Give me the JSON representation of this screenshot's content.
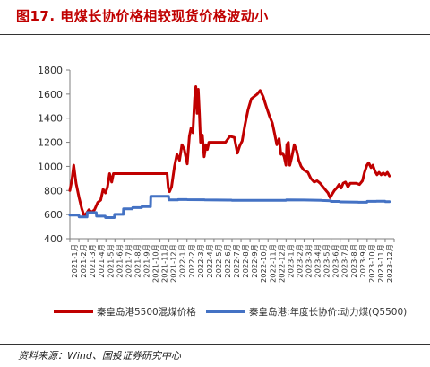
{
  "figure_title": "图17. 电煤长协价格相较现货价格波动小",
  "source": "资料来源：Wind、国投证券研究中心",
  "colors": {
    "spot": "#c00000",
    "contract": "#4472c4",
    "axis": "#7f7f7f",
    "title": "#c00000"
  },
  "chart_data": {
    "type": "line",
    "ylim": [
      400,
      1800
    ],
    "yticks": [
      400,
      600,
      800,
      1000,
      1200,
      1400,
      1600,
      1800
    ],
    "xlim": [
      "2021-01",
      "2023-12"
    ],
    "xticks": [
      "2021-1月",
      "2021-2月",
      "2021-3月",
      "2021-4月",
      "2021-5月",
      "2021-6月",
      "2021-7月",
      "2021-8月",
      "2021-9月",
      "2021-10月",
      "2021-11月",
      "2021-12月",
      "2022-1月",
      "2022-2月",
      "2022-3月",
      "2022-4月",
      "2022-5月",
      "2022-6月",
      "2022-7月",
      "2022-8月",
      "2022-9月",
      "2022-10月",
      "2022-11月",
      "2022-12月",
      "2023-1月",
      "2023-2月",
      "2023-3月",
      "2023-4月",
      "2023-5月",
      "2023-6月",
      "2023-7月",
      "2023-8月",
      "2023-9月",
      "2023-10月",
      "2023-11月",
      "2023-12月"
    ],
    "legend_position": "bottom",
    "grid": false,
    "series": [
      {
        "name": "秦皇岛港5500混煤价格",
        "color": "#c00000",
        "points": [
          [
            "2021-01-01",
            800
          ],
          [
            "2021-01-08",
            890
          ],
          [
            "2021-01-14",
            1010
          ],
          [
            "2021-01-22",
            860
          ],
          [
            "2021-02-01",
            740
          ],
          [
            "2021-02-10",
            650
          ],
          [
            "2021-02-18",
            590
          ],
          [
            "2021-02-26",
            610
          ],
          [
            "2021-03-06",
            640
          ],
          [
            "2021-03-15",
            620
          ],
          [
            "2021-03-25",
            640
          ],
          [
            "2021-04-05",
            700
          ],
          [
            "2021-04-15",
            720
          ],
          [
            "2021-04-23",
            810
          ],
          [
            "2021-05-01",
            780
          ],
          [
            "2021-05-08",
            830
          ],
          [
            "2021-05-15",
            940
          ],
          [
            "2021-05-22",
            870
          ],
          [
            "2021-05-28",
            940
          ],
          [
            "2021-06-15",
            940
          ],
          [
            "2021-07-15",
            940
          ],
          [
            "2021-08-15",
            940
          ],
          [
            "2021-09-15",
            940
          ],
          [
            "2021-10-15",
            940
          ],
          [
            "2021-11-15",
            940
          ],
          [
            "2021-11-25",
            940
          ],
          [
            "2021-11-29",
            820
          ],
          [
            "2021-12-03",
            790
          ],
          [
            "2021-12-10",
            830
          ],
          [
            "2021-12-20",
            1000
          ],
          [
            "2021-12-28",
            1100
          ],
          [
            "2022-01-06",
            1050
          ],
          [
            "2022-01-14",
            1180
          ],
          [
            "2022-01-22",
            1140
          ],
          [
            "2022-02-01",
            1020
          ],
          [
            "2022-02-08",
            1250
          ],
          [
            "2022-02-14",
            1320
          ],
          [
            "2022-02-20",
            1280
          ],
          [
            "2022-02-26",
            1570
          ],
          [
            "2022-03-02",
            1662
          ],
          [
            "2022-03-06",
            1440
          ],
          [
            "2022-03-10",
            1640
          ],
          [
            "2022-03-14",
            1440
          ],
          [
            "2022-03-18",
            1200
          ],
          [
            "2022-03-24",
            1260
          ],
          [
            "2022-03-30",
            1080
          ],
          [
            "2022-04-05",
            1180
          ],
          [
            "2022-04-10",
            1140
          ],
          [
            "2022-04-15",
            1200
          ],
          [
            "2022-05-05",
            1200
          ],
          [
            "2022-05-25",
            1200
          ],
          [
            "2022-06-10",
            1200
          ],
          [
            "2022-06-25",
            1250
          ],
          [
            "2022-07-10",
            1240
          ],
          [
            "2022-07-20",
            1110
          ],
          [
            "2022-07-28",
            1170
          ],
          [
            "2022-08-05",
            1210
          ],
          [
            "2022-08-15",
            1350
          ],
          [
            "2022-08-25",
            1470
          ],
          [
            "2022-09-05",
            1560
          ],
          [
            "2022-09-15",
            1580
          ],
          [
            "2022-09-25",
            1600
          ],
          [
            "2022-10-05",
            1630
          ],
          [
            "2022-10-15",
            1580
          ],
          [
            "2022-10-25",
            1500
          ],
          [
            "2022-11-05",
            1420
          ],
          [
            "2022-11-15",
            1360
          ],
          [
            "2022-11-22",
            1280
          ],
          [
            "2022-11-30",
            1180
          ],
          [
            "2022-12-08",
            1230
          ],
          [
            "2022-12-14",
            1100
          ],
          [
            "2022-12-20",
            1110
          ],
          [
            "2022-12-25",
            1080
          ],
          [
            "2022-12-31",
            1010
          ],
          [
            "2023-01-03",
            1180
          ],
          [
            "2023-01-08",
            1200
          ],
          [
            "2023-01-13",
            1010
          ],
          [
            "2023-01-20",
            1080
          ],
          [
            "2023-01-28",
            1180
          ],
          [
            "2023-02-05",
            1130
          ],
          [
            "2023-02-12",
            1050
          ],
          [
            "2023-02-20",
            1000
          ],
          [
            "2023-03-01",
            970
          ],
          [
            "2023-03-15",
            950
          ],
          [
            "2023-03-25",
            900
          ],
          [
            "2023-04-05",
            870
          ],
          [
            "2023-04-15",
            880
          ],
          [
            "2023-04-25",
            860
          ],
          [
            "2023-05-05",
            830
          ],
          [
            "2023-05-15",
            800
          ],
          [
            "2023-05-22",
            780
          ],
          [
            "2023-05-29",
            740
          ],
          [
            "2023-06-05",
            770
          ],
          [
            "2023-06-12",
            800
          ],
          [
            "2023-06-20",
            820
          ],
          [
            "2023-06-28",
            850
          ],
          [
            "2023-07-05",
            820
          ],
          [
            "2023-07-12",
            860
          ],
          [
            "2023-07-20",
            870
          ],
          [
            "2023-07-28",
            830
          ],
          [
            "2023-08-05",
            860
          ],
          [
            "2023-08-15",
            860
          ],
          [
            "2023-08-25",
            860
          ],
          [
            "2023-09-05",
            850
          ],
          [
            "2023-09-15",
            880
          ],
          [
            "2023-09-22",
            950
          ],
          [
            "2023-09-30",
            1010
          ],
          [
            "2023-10-06",
            1030
          ],
          [
            "2023-10-14",
            990
          ],
          [
            "2023-10-20",
            1010
          ],
          [
            "2023-10-27",
            960
          ],
          [
            "2023-11-03",
            930
          ],
          [
            "2023-11-10",
            950
          ],
          [
            "2023-11-17",
            930
          ],
          [
            "2023-11-24",
            945
          ],
          [
            "2023-12-01",
            930
          ],
          [
            "2023-12-08",
            950
          ],
          [
            "2023-12-15",
            920
          ]
        ]
      },
      {
        "name": "秦皇岛港:年度长协价:动力煤(Q5500)",
        "color": "#4472c4",
        "points": [
          [
            "2021-01-01",
            595
          ],
          [
            "2021-01-31",
            595
          ],
          [
            "2021-02-01",
            580
          ],
          [
            "2021-02-28",
            580
          ],
          [
            "2021-03-01",
            617
          ],
          [
            "2021-03-31",
            617
          ],
          [
            "2021-04-01",
            587
          ],
          [
            "2021-04-30",
            587
          ],
          [
            "2021-05-01",
            575
          ],
          [
            "2021-05-31",
            575
          ],
          [
            "2021-06-01",
            602
          ],
          [
            "2021-06-30",
            602
          ],
          [
            "2021-07-01",
            648
          ],
          [
            "2021-07-31",
            648
          ],
          [
            "2021-08-01",
            658
          ],
          [
            "2021-08-31",
            658
          ],
          [
            "2021-09-01",
            666
          ],
          [
            "2021-09-30",
            666
          ],
          [
            "2021-10-01",
            752
          ],
          [
            "2021-10-31",
            752
          ],
          [
            "2021-11-01",
            752
          ],
          [
            "2021-11-30",
            752
          ],
          [
            "2021-12-01",
            722
          ],
          [
            "2021-12-31",
            722
          ],
          [
            "2022-01-01",
            725
          ],
          [
            "2022-01-31",
            725
          ],
          [
            "2022-02-01",
            724
          ],
          [
            "2022-03-31",
            723
          ],
          [
            "2022-04-01",
            722
          ],
          [
            "2022-06-30",
            720
          ],
          [
            "2022-07-01",
            719
          ],
          [
            "2022-09-30",
            718
          ],
          [
            "2022-10-01",
            718
          ],
          [
            "2022-12-31",
            719
          ],
          [
            "2023-01-01",
            722
          ],
          [
            "2023-02-28",
            721
          ],
          [
            "2023-03-01",
            721
          ],
          [
            "2023-04-30",
            719
          ],
          [
            "2023-05-01",
            717
          ],
          [
            "2023-05-31",
            715
          ],
          [
            "2023-06-01",
            709
          ],
          [
            "2023-06-30",
            709
          ],
          [
            "2023-07-01",
            705
          ],
          [
            "2023-08-31",
            704
          ],
          [
            "2023-09-01",
            702
          ],
          [
            "2023-09-30",
            702
          ],
          [
            "2023-10-01",
            710
          ],
          [
            "2023-10-31",
            710
          ],
          [
            "2023-11-01",
            711
          ],
          [
            "2023-11-30",
            711
          ],
          [
            "2023-12-01",
            707
          ],
          [
            "2023-12-15",
            707
          ]
        ]
      }
    ]
  }
}
